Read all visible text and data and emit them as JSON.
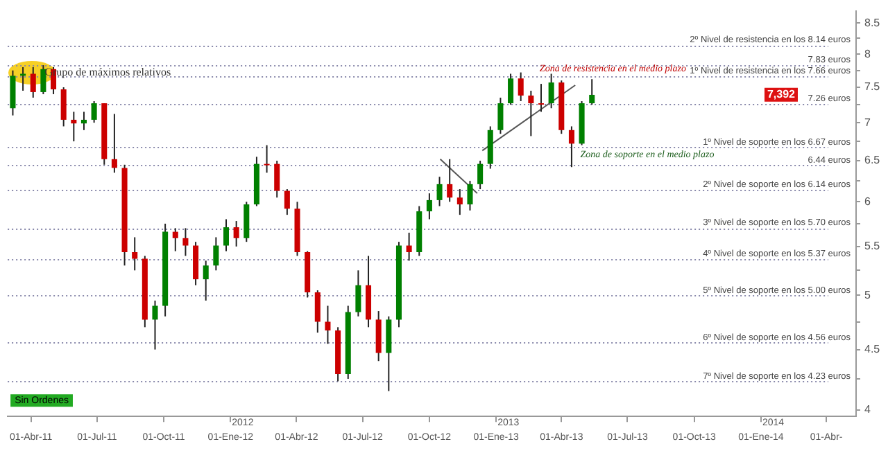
{
  "chart_data": {
    "type": "candlestick",
    "x": [
      "2011-03-07",
      "2011-03-21",
      "2011-04-04",
      "2011-04-18",
      "2011-05-02",
      "2011-05-16",
      "2011-05-30",
      "2011-06-13",
      "2011-06-27",
      "2011-07-11",
      "2011-07-25",
      "2011-08-08",
      "2011-08-22",
      "2011-09-05",
      "2011-09-19",
      "2011-10-03",
      "2011-10-17",
      "2011-10-31",
      "2011-11-14",
      "2011-11-28",
      "2011-12-12",
      "2011-12-26",
      "2012-01-09",
      "2012-01-23",
      "2012-02-06",
      "2012-02-20",
      "2012-03-05",
      "2012-03-19",
      "2012-04-02",
      "2012-04-16",
      "2012-04-30",
      "2012-05-14",
      "2012-05-28",
      "2012-06-11",
      "2012-06-25",
      "2012-07-09",
      "2012-07-23",
      "2012-08-06",
      "2012-08-20",
      "2012-09-03",
      "2012-09-17",
      "2012-10-01",
      "2012-10-15",
      "2012-10-29",
      "2012-11-12",
      "2012-11-26",
      "2012-12-10",
      "2012-12-24",
      "2013-01-07",
      "2013-01-21",
      "2013-02-04",
      "2013-02-18",
      "2013-03-04",
      "2013-03-18",
      "2013-04-01",
      "2013-04-15",
      "2013-04-29",
      "2013-05-13"
    ],
    "ohlc": [
      [
        7.2,
        7.75,
        7.1,
        7.67
      ],
      [
        7.67,
        7.8,
        7.45,
        7.7
      ],
      [
        7.7,
        7.8,
        7.35,
        7.43
      ],
      [
        7.43,
        7.83,
        7.4,
        7.77
      ],
      [
        7.77,
        7.8,
        7.4,
        7.47
      ],
      [
        7.47,
        7.5,
        6.95,
        7.04
      ],
      [
        7.04,
        7.15,
        6.75,
        6.99
      ],
      [
        6.99,
        7.15,
        6.9,
        7.04
      ],
      [
        7.04,
        7.3,
        7.0,
        7.27
      ],
      [
        7.27,
        7.27,
        6.45,
        6.52
      ],
      [
        6.52,
        7.12,
        6.35,
        6.41
      ],
      [
        6.41,
        6.45,
        5.3,
        5.44
      ],
      [
        5.44,
        5.6,
        5.25,
        5.37
      ],
      [
        5.37,
        5.4,
        4.7,
        4.77
      ],
      [
        4.77,
        4.95,
        4.5,
        4.9
      ],
      [
        4.9,
        5.75,
        4.8,
        5.66
      ],
      [
        5.66,
        5.7,
        5.45,
        5.59
      ],
      [
        5.59,
        5.7,
        5.4,
        5.51
      ],
      [
        5.51,
        5.55,
        5.1,
        5.16
      ],
      [
        5.16,
        5.35,
        4.95,
        5.3
      ],
      [
        5.3,
        5.6,
        5.25,
        5.51
      ],
      [
        5.51,
        5.8,
        5.45,
        5.71
      ],
      [
        5.71,
        5.78,
        5.5,
        5.59
      ],
      [
        5.59,
        6.0,
        5.55,
        5.97
      ],
      [
        5.97,
        6.55,
        5.95,
        6.46
      ],
      [
        6.46,
        6.7,
        6.35,
        6.46
      ],
      [
        6.46,
        6.5,
        6.05,
        6.13
      ],
      [
        6.13,
        6.15,
        5.85,
        5.92
      ],
      [
        5.92,
        6.0,
        5.4,
        5.44
      ],
      [
        5.44,
        5.45,
        4.98,
        5.03
      ],
      [
        5.03,
        5.05,
        4.65,
        4.75
      ],
      [
        4.75,
        4.9,
        4.55,
        4.67
      ],
      [
        4.67,
        4.7,
        4.23,
        4.29
      ],
      [
        4.29,
        4.9,
        4.25,
        4.84
      ],
      [
        4.84,
        5.25,
        4.8,
        5.1
      ],
      [
        5.1,
        5.4,
        4.7,
        4.77
      ],
      [
        4.77,
        4.85,
        4.4,
        4.47
      ],
      [
        4.47,
        4.8,
        4.15,
        4.77
      ],
      [
        4.77,
        5.55,
        4.7,
        5.51
      ],
      [
        5.51,
        5.65,
        5.35,
        5.44
      ],
      [
        5.44,
        5.95,
        5.4,
        5.89
      ],
      [
        5.89,
        6.1,
        5.8,
        6.02
      ],
      [
        6.02,
        6.3,
        5.95,
        6.21
      ],
      [
        6.21,
        6.52,
        6.0,
        6.05
      ],
      [
        6.05,
        6.15,
        5.85,
        5.97
      ],
      [
        5.97,
        6.25,
        5.9,
        6.21
      ],
      [
        6.21,
        6.5,
        6.15,
        6.46
      ],
      [
        6.46,
        6.95,
        6.4,
        6.9
      ],
      [
        6.9,
        7.35,
        6.85,
        7.27
      ],
      [
        7.27,
        7.7,
        7.25,
        7.63
      ],
      [
        7.63,
        7.72,
        7.3,
        7.38
      ],
      [
        7.38,
        7.45,
        6.82,
        7.27
      ],
      [
        7.27,
        7.55,
        7.15,
        7.27
      ],
      [
        7.27,
        7.7,
        7.2,
        7.57
      ],
      [
        7.57,
        7.6,
        6.85,
        6.9
      ],
      [
        6.9,
        6.95,
        6.42,
        6.72
      ],
      [
        6.72,
        7.3,
        6.7,
        7.27
      ],
      [
        7.27,
        7.62,
        7.25,
        7.39
      ]
    ],
    "colors": [
      "#008000",
      "#008000",
      "#cc0000",
      "#008000",
      "#cc0000",
      "#cc0000",
      "#cc0000",
      "#008000",
      "#008000",
      "#cc0000",
      "#cc0000",
      "#cc0000",
      "#cc0000",
      "#cc0000",
      "#008000",
      "#008000",
      "#cc0000",
      "#cc0000",
      "#cc0000",
      "#008000",
      "#008000",
      "#008000",
      "#cc0000",
      "#008000",
      "#008000",
      "#cc0000",
      "#cc0000",
      "#cc0000",
      "#cc0000",
      "#cc0000",
      "#cc0000",
      "#cc0000",
      "#cc0000",
      "#008000",
      "#008000",
      "#cc0000",
      "#cc0000",
      "#008000",
      "#008000",
      "#cc0000",
      "#008000",
      "#008000",
      "#008000",
      "#cc0000",
      "#cc0000",
      "#008000",
      "#008000",
      "#008000",
      "#008000",
      "#008000",
      "#cc0000",
      "#cc0000",
      "#cc0000",
      "#008000",
      "#cc0000",
      "#cc0000",
      "#008000",
      "#008000"
    ],
    "series": [
      {
        "type": "line",
        "color": "#555555",
        "x": [
          "2012-10-16",
          "2012-12-06"
        ],
        "values": [
          6.52,
          6.1
        ]
      },
      {
        "type": "line",
        "color": "#555555",
        "x": [
          "2012-12-13",
          "2013-04-20"
        ],
        "values": [
          6.63,
          7.53
        ]
      }
    ],
    "log": true,
    "ylim": [
      3.95,
      8.7
    ],
    "yticks": [
      4,
      {
        "value": 4.25,
        "label": null
      },
      4.5,
      {
        "value": 4.75,
        "label": null
      },
      5,
      {
        "value": 5.25,
        "label": null
      },
      5.5,
      {
        "value": 5.75,
        "label": null
      },
      6,
      {
        "value": 6.25,
        "label": null
      },
      6.5,
      {
        "value": 6.75,
        "label": null
      },
      7,
      {
        "value": 7.25,
        "label": null
      },
      7.5,
      {
        "value": 7.75,
        "label": null
      },
      8,
      {
        "value": 8.25,
        "label": null
      },
      8.5
    ],
    "xlim": [
      "2011-02-28",
      "2014-05-12"
    ],
    "xticks": [
      {
        "value": "2011-04-01",
        "label": "01-Abr-11"
      },
      {
        "value": "2011-07-01",
        "label": "01-Jul-11"
      },
      {
        "value": "2011-10-01",
        "label": "01-Oct-11"
      },
      {
        "value": "2012-01-01",
        "label": "01-Ene-12"
      },
      {
        "value": "2012-04-01",
        "label": "01-Abr-12"
      },
      {
        "value": "2012-07-01",
        "label": "01-Jul-12"
      },
      {
        "value": "2012-10-01",
        "label": "01-Oct-12"
      },
      {
        "value": "2013-01-01",
        "label": "01-Ene-13"
      },
      {
        "value": "2013-04-01",
        "label": "01-Abr-13"
      },
      {
        "value": "2013-07-01",
        "label": "01-Jul-13"
      },
      {
        "value": "2013-10-01",
        "label": "01-Oct-13"
      },
      {
        "value": "2014-01-01",
        "label": "01-Ene-14"
      },
      {
        "value": "2014-04-01",
        "label": "01-Abr-"
      }
    ],
    "ref_lines": [
      {
        "axis": "y",
        "value": 8.14,
        "label": "2º Nivel de resistencia en los 8.14 euros",
        "color": "#8888aa",
        "line_style": "dotted"
      },
      {
        "axis": "y",
        "value": 7.83,
        "label": "7.83 euros",
        "color": "#8888aa",
        "line_style": "dotted"
      },
      {
        "axis": "y",
        "value": 7.66,
        "label": "1º Nivel de resistencia en los 7.66 euros",
        "color": "#8888aa",
        "line_style": "dotted"
      },
      {
        "axis": "y",
        "value": 7.26,
        "label": "7.26 euros",
        "color": "#8888aa",
        "line_style": "dotted"
      },
      {
        "axis": "y",
        "value": 6.67,
        "label": "1º Nivel de soporte en los 6.67 euros",
        "color": "#8888aa",
        "line_style": "dotted"
      },
      {
        "axis": "y",
        "value": 6.44,
        "label": "6.44 euros",
        "color": "#8888aa",
        "line_style": "dotted"
      },
      {
        "axis": "y",
        "value": 6.14,
        "label": "2º Nivel de soporte en los 6.14 euros",
        "color": "#8888aa",
        "line_style": "dotted"
      },
      {
        "axis": "y",
        "value": 5.7,
        "label": "3º Nivel de soporte en los 5.70 euros",
        "color": "#8888aa",
        "line_style": "dotted"
      },
      {
        "axis": "y",
        "value": 5.37,
        "label": "4º Nivel de soporte en los 5.37 euros",
        "color": "#8888aa",
        "line_style": "dotted"
      },
      {
        "axis": "y",
        "value": 5.0,
        "label": "5º Nivel de soporte en los 5.00 euros",
        "color": "#8888aa",
        "line_style": "dotted"
      },
      {
        "axis": "y",
        "value": 4.56,
        "label": "6º Nivel de soporte en los 4.56 euros",
        "color": "#8888aa",
        "line_style": "dotted"
      },
      {
        "axis": "y",
        "value": 4.23,
        "label": "7º Nivel de soporte en los 4.23 euros",
        "color": "#8888aa",
        "line_style": "dotted"
      }
    ],
    "annotations": [
      {
        "text": "Grupo de máximos relativos",
        "x": "2011-04-20",
        "y": 7.72
      },
      {
        "text": "7,392",
        "y": 7.392
      },
      "Zona de resistencia en el medio plazo",
      "Zona de soporte en el medio plazo",
      "2012",
      "2013",
      "2014",
      "Sin Ordenes"
    ],
    "legend": false
  }
}
